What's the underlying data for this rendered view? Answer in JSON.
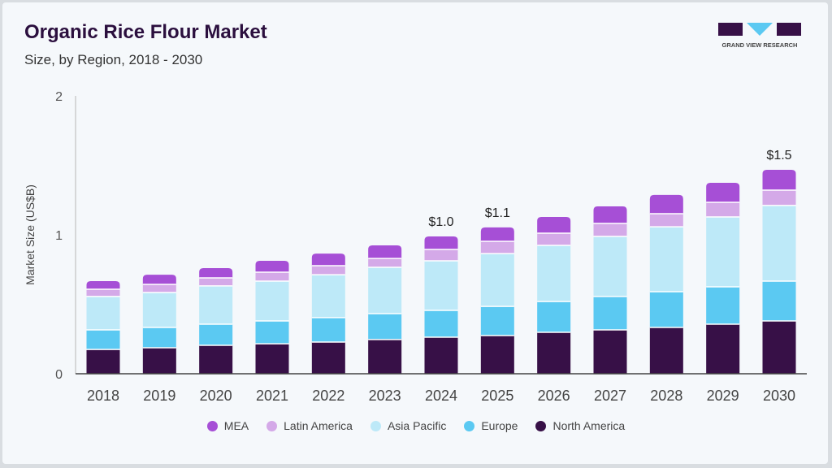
{
  "header": {
    "title": "Organic Rice Flour Market",
    "subtitle": "Size, by Region, 2018 - 2030",
    "logo_text": "GRAND VIEW RESEARCH"
  },
  "chart_data": {
    "type": "bar",
    "stacked": true,
    "title": "Organic Rice Flour Market",
    "subtitle": "Size, by Region, 2018 - 2030",
    "xlabel": "",
    "ylabel": "Market Size (US$B)",
    "ylim": [
      0,
      2
    ],
    "yticks": [
      "0",
      "1",
      "2"
    ],
    "grid": false,
    "legend": "bottom",
    "categories": [
      "2018",
      "2019",
      "2020",
      "2021",
      "2022",
      "2023",
      "2024",
      "2025",
      "2026",
      "2027",
      "2028",
      "2029",
      "2030"
    ],
    "series": [
      {
        "name": "North America",
        "color": "#371047",
        "values": [
          0.175,
          0.187,
          0.205,
          0.216,
          0.228,
          0.246,
          0.263,
          0.275,
          0.298,
          0.316,
          0.333,
          0.357,
          0.38
        ]
      },
      {
        "name": "Europe",
        "color": "#5bc9f2",
        "values": [
          0.141,
          0.146,
          0.152,
          0.164,
          0.176,
          0.187,
          0.193,
          0.21,
          0.222,
          0.24,
          0.258,
          0.269,
          0.287
        ]
      },
      {
        "name": "Asia Pacific",
        "color": "#bde9f8",
        "values": [
          0.24,
          0.252,
          0.275,
          0.287,
          0.309,
          0.333,
          0.357,
          0.38,
          0.404,
          0.432,
          0.467,
          0.503,
          0.544
        ]
      },
      {
        "name": "Latin America",
        "color": "#d4a9e8",
        "values": [
          0.052,
          0.058,
          0.058,
          0.064,
          0.065,
          0.064,
          0.082,
          0.088,
          0.088,
          0.094,
          0.094,
          0.105,
          0.111
        ]
      },
      {
        "name": "MEA",
        "color": "#a64fd6",
        "values": [
          0.059,
          0.07,
          0.07,
          0.082,
          0.087,
          0.094,
          0.093,
          0.1,
          0.117,
          0.123,
          0.135,
          0.14,
          0.146
        ]
      }
    ],
    "annotations": [
      {
        "category": "2024",
        "label": "$1.0"
      },
      {
        "category": "2025",
        "label": "$1.1"
      },
      {
        "category": "2030",
        "label": "$1.5"
      }
    ],
    "legend_order": [
      "MEA",
      "Latin America",
      "Asia Pacific",
      "Europe",
      "North America"
    ]
  }
}
